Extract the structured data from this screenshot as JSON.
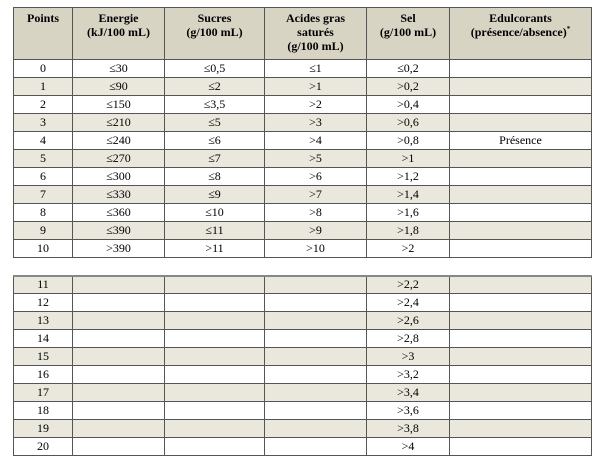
{
  "headers": [
    {
      "line1": "Points",
      "line2": "",
      "line3": "",
      "sup": ""
    },
    {
      "line1": "Energie",
      "line2": "(kJ/100 mL)",
      "line3": "",
      "sup": ""
    },
    {
      "line1": "Sucres",
      "line2": "(g/100 mL)",
      "line3": "",
      "sup": ""
    },
    {
      "line1": "Acides gras",
      "line2": "saturés",
      "line3": "(g/100 mL)",
      "sup": ""
    },
    {
      "line1": "Sel",
      "line2": "(g/100 mL)",
      "line3": "",
      "sup": ""
    },
    {
      "line1": "Edulcorants",
      "line2": "(présence/absence)",
      "line3": "",
      "sup": "*"
    }
  ],
  "rows_part1": [
    {
      "points": "0",
      "energie": "≤30",
      "sucres": "≤0,5",
      "agsat": "≤1",
      "sel": "≤0,2",
      "edulc": ""
    },
    {
      "points": "1",
      "energie": "≤90",
      "sucres": "≤2",
      "agsat": ">1",
      "sel": ">0,2",
      "edulc": ""
    },
    {
      "points": "2",
      "energie": "≤150",
      "sucres": "≤3,5",
      "agsat": ">2",
      "sel": ">0,4",
      "edulc": ""
    },
    {
      "points": "3",
      "energie": "≤210",
      "sucres": "≤5",
      "agsat": ">3",
      "sel": ">0,6",
      "edulc": ""
    },
    {
      "points": "4",
      "energie": "≤240",
      "sucres": "≤6",
      "agsat": ">4",
      "sel": ">0,8",
      "edulc": "Présence"
    },
    {
      "points": "5",
      "energie": "≤270",
      "sucres": "≤7",
      "agsat": ">5",
      "sel": ">1",
      "edulc": ""
    },
    {
      "points": "6",
      "energie": "≤300",
      "sucres": "≤8",
      "agsat": ">6",
      "sel": ">1,2",
      "edulc": ""
    },
    {
      "points": "7",
      "energie": "≤330",
      "sucres": "≤9",
      "agsat": ">7",
      "sel": ">1,4",
      "edulc": ""
    },
    {
      "points": "8",
      "energie": "≤360",
      "sucres": "≤10",
      "agsat": ">8",
      "sel": ">1,6",
      "edulc": ""
    },
    {
      "points": "9",
      "energie": "≤390",
      "sucres": "≤11",
      "agsat": ">9",
      "sel": ">1,8",
      "edulc": ""
    },
    {
      "points": "10",
      "energie": ">390",
      "sucres": ">11",
      "agsat": ">10",
      "sel": ">2",
      "edulc": ""
    }
  ],
  "rows_part2": [
    {
      "points": "11",
      "sel": ">2,2"
    },
    {
      "points": "12",
      "sel": ">2,4"
    },
    {
      "points": "13",
      "sel": ">2,6"
    },
    {
      "points": "14",
      "sel": ">2,8"
    },
    {
      "points": "15",
      "sel": ">3"
    },
    {
      "points": "16",
      "sel": ">3,2"
    },
    {
      "points": "17",
      "sel": ">3,4"
    },
    {
      "points": "18",
      "sel": ">3,6"
    },
    {
      "points": "19",
      "sel": ">3,8"
    },
    {
      "points": "20",
      "sel": ">4"
    }
  ],
  "colors": {
    "header_bg": "#d8d4c4",
    "shaded_row_bg": "#eae7dd",
    "plain_row_bg": "#ffffff",
    "border": "#555555"
  }
}
